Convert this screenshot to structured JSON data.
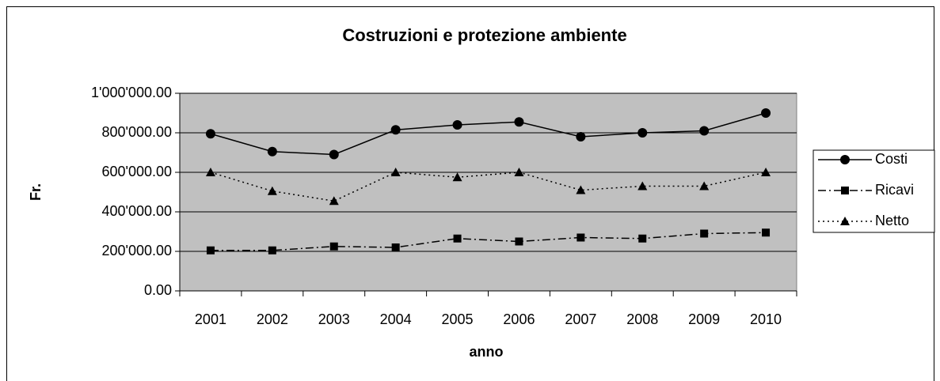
{
  "chart_data": {
    "type": "line",
    "title": "Costruzioni e protezione ambiente",
    "x_label": "anno",
    "y_label": "Fr.",
    "categories": [
      "2001",
      "2002",
      "2003",
      "2004",
      "2005",
      "2006",
      "2007",
      "2008",
      "2009",
      "2010"
    ],
    "series": [
      {
        "name": "Costi",
        "color": "#000000",
        "marker": "circle",
        "dash": "solid",
        "values": [
          795000,
          705000,
          690000,
          815000,
          840000,
          855000,
          780000,
          800000,
          810000,
          900000
        ]
      },
      {
        "name": "Ricavi",
        "color": "#000000",
        "marker": "square",
        "dash": "dashdot",
        "values": [
          205000,
          205000,
          225000,
          220000,
          265000,
          250000,
          270000,
          265000,
          290000,
          295000
        ]
      },
      {
        "name": "Netto",
        "color": "#000000",
        "marker": "triangle",
        "dash": "dotted",
        "values": [
          600000,
          505000,
          455000,
          600000,
          575000,
          600000,
          510000,
          530000,
          530000,
          600000
        ]
      }
    ],
    "ylim": [
      0,
      1000000
    ],
    "yticks": [
      {
        "value": 0,
        "label": "0.00"
      },
      {
        "value": 200000,
        "label": "200'000.00"
      },
      {
        "value": 400000,
        "label": "400'000.00"
      },
      {
        "value": 600000,
        "label": "600'000.00"
      },
      {
        "value": 800000,
        "label": "800'000.00"
      },
      {
        "value": 1000000,
        "label": "1'000'000.00"
      }
    ],
    "grid": true,
    "plot_background": "#c0c0c0",
    "legend": "right"
  }
}
